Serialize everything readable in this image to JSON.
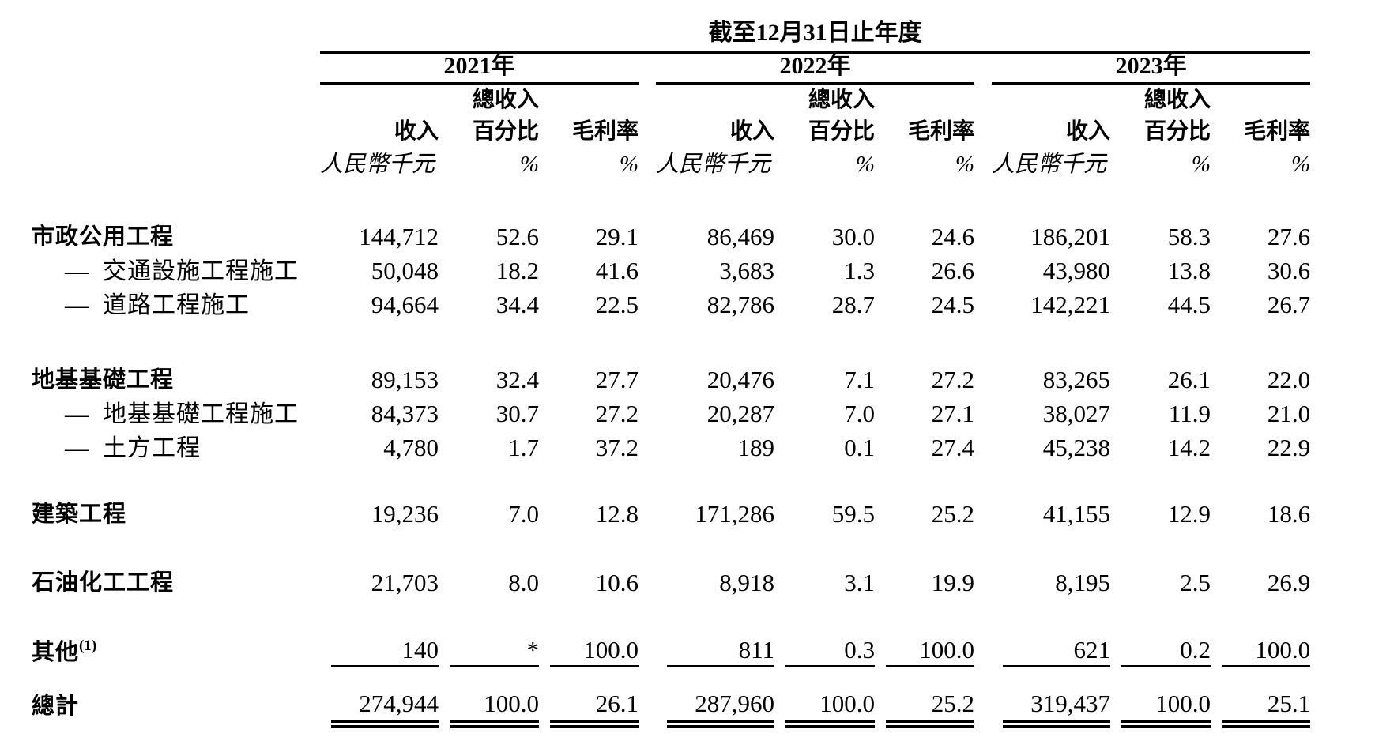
{
  "page": {
    "background": "#ffffff",
    "text_color": "#000000"
  },
  "table": {
    "title": "截至12月31日止年度",
    "dash": "—",
    "years": [
      "2021年",
      "2022年",
      "2023年"
    ],
    "column_headers": {
      "pct_top": "總收入",
      "revenue": "收入",
      "pct": "百分比",
      "margin": "毛利率",
      "revenue_unit": "人民幣千元",
      "pct_unit": "%",
      "margin_unit": "%"
    },
    "rows": [
      {
        "label": "市政公用工程",
        "type": "category",
        "values": [
          "144,712",
          "52.6",
          "29.1",
          "86,469",
          "30.0",
          "24.6",
          "186,201",
          "58.3",
          "27.6"
        ]
      },
      {
        "label": "交通設施工程施工",
        "type": "sub",
        "values": [
          "50,048",
          "18.2",
          "41.6",
          "3,683",
          "1.3",
          "26.6",
          "43,980",
          "13.8",
          "30.6"
        ]
      },
      {
        "label": "道路工程施工",
        "type": "sub",
        "values": [
          "94,664",
          "34.4",
          "22.5",
          "82,786",
          "28.7",
          "24.5",
          "142,221",
          "44.5",
          "26.7"
        ]
      },
      {
        "label": "地基基礎工程",
        "type": "category",
        "values": [
          "89,153",
          "32.4",
          "27.7",
          "20,476",
          "7.1",
          "27.2",
          "83,265",
          "26.1",
          "22.0"
        ]
      },
      {
        "label": "地基基礎工程施工",
        "type": "sub",
        "values": [
          "84,373",
          "30.7",
          "27.2",
          "20,287",
          "7.0",
          "27.1",
          "38,027",
          "11.9",
          "21.0"
        ]
      },
      {
        "label": "土方工程",
        "type": "sub",
        "values": [
          "4,780",
          "1.7",
          "37.2",
          "189",
          "0.1",
          "27.4",
          "45,238",
          "14.2",
          "22.9"
        ]
      },
      {
        "label": "建築工程",
        "type": "category",
        "values": [
          "19,236",
          "7.0",
          "12.8",
          "171,286",
          "59.5",
          "25.2",
          "41,155",
          "12.9",
          "18.6"
        ]
      },
      {
        "label": "石油化工工程",
        "type": "category",
        "values": [
          "21,703",
          "8.0",
          "10.6",
          "8,918",
          "3.1",
          "19.9",
          "8,195",
          "2.5",
          "26.9"
        ]
      },
      {
        "label": "其他",
        "sup": "(1)",
        "type": "category",
        "values": [
          "140",
          "*",
          "100.0",
          "811",
          "0.3",
          "100.0",
          "621",
          "0.2",
          "100.0"
        ]
      },
      {
        "label": "總計",
        "type": "total",
        "values": [
          "274,944",
          "100.0",
          "26.1",
          "287,960",
          "100.0",
          "25.2",
          "319,437",
          "100.0",
          "25.1"
        ]
      }
    ]
  }
}
